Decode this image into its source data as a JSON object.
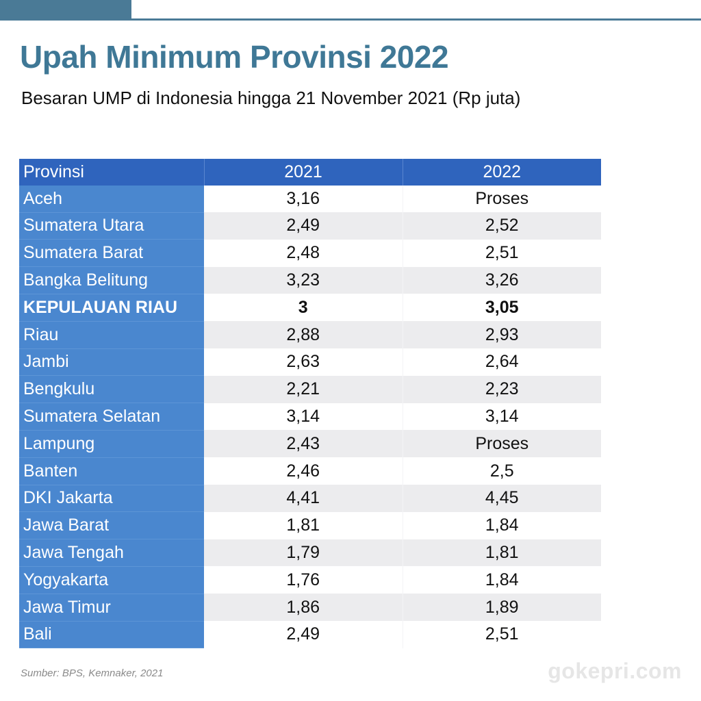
{
  "header": {
    "title": "Upah Minimum Provinsi 2022",
    "subtitle": "Besaran UMP di Indonesia hingga 21 November 2021 (Rp juta)"
  },
  "colors": {
    "title": "#3f7896",
    "header_fill": "#2f64bd",
    "province_fill": "#4a87cf",
    "stripe": "#ececee"
  },
  "chart_data": {
    "type": "table",
    "columns": [
      "Provinsi",
      "2021",
      "2022"
    ],
    "highlighted_row": "KEPULAUAN RIAU",
    "rows": [
      {
        "provinsi": "Aceh",
        "y2021": "3,16",
        "y2022": "Proses"
      },
      {
        "provinsi": "Sumatera Utara",
        "y2021": "2,49",
        "y2022": "2,52"
      },
      {
        "provinsi": "Sumatera Barat",
        "y2021": "2,48",
        "y2022": "2,51"
      },
      {
        "provinsi": "Bangka Belitung",
        "y2021": "3,23",
        "y2022": "3,26"
      },
      {
        "provinsi": "KEPULAUAN RIAU",
        "y2021": "3",
        "y2022": "3,05"
      },
      {
        "provinsi": "Riau",
        "y2021": "2,88",
        "y2022": "2,93"
      },
      {
        "provinsi": "Jambi",
        "y2021": "2,63",
        "y2022": "2,64"
      },
      {
        "provinsi": "Bengkulu",
        "y2021": "2,21",
        "y2022": "2,23"
      },
      {
        "provinsi": "Sumatera Selatan",
        "y2021": "3,14",
        "y2022": "3,14"
      },
      {
        "provinsi": "Lampung",
        "y2021": "2,43",
        "y2022": "Proses"
      },
      {
        "provinsi": "Banten",
        "y2021": "2,46",
        "y2022": "2,5"
      },
      {
        "provinsi": "DKI Jakarta",
        "y2021": "4,41",
        "y2022": "4,45"
      },
      {
        "provinsi": "Jawa Barat",
        "y2021": "1,81",
        "y2022": "1,84"
      },
      {
        "provinsi": "Jawa Tengah",
        "y2021": "1,79",
        "y2022": "1,81"
      },
      {
        "provinsi": "Yogyakarta",
        "y2021": "1,76",
        "y2022": "1,84"
      },
      {
        "provinsi": "Jawa Timur",
        "y2021": "1,86",
        "y2022": "1,89"
      },
      {
        "provinsi": "Bali",
        "y2021": "2,49",
        "y2022": "2,51"
      }
    ]
  },
  "footer": {
    "source": "Sumber: BPS, Kemnaker, 2021",
    "watermark": "gokepri.com"
  }
}
